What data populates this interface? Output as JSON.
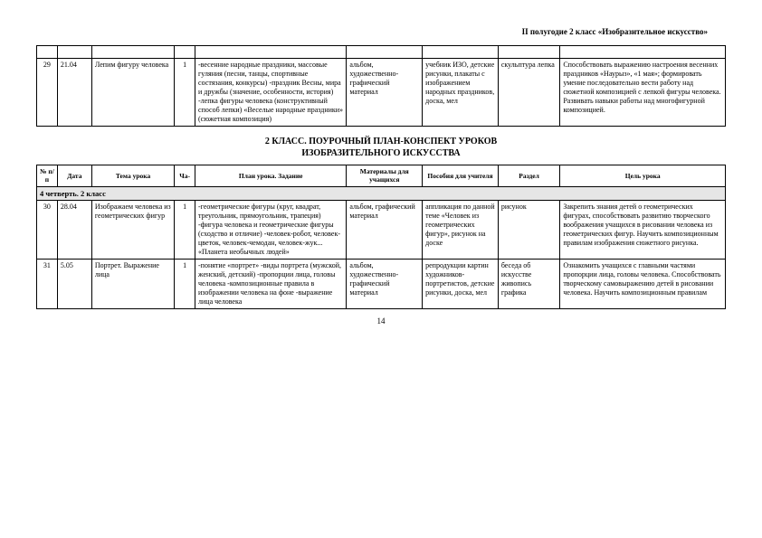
{
  "header": "II полугодие 2 класс «Изобразительное искусство»",
  "page_number": "14",
  "section_title_line1": "2 КЛАСС. ПОУРОЧНЫЙ ПЛАН-КОНСПЕКТ УРОКОВ",
  "section_title_line2": "ИЗОБРАЗИТЕЛЬНОГО ИСКУССТВА",
  "columns": {
    "num": "№ п/п",
    "date": "Дата",
    "topic": "Тема урока",
    "hours": "Ча-",
    "plan": "План урока. Задание",
    "materials": "Материалы для учащихся",
    "aids": "Пособия для учителя",
    "section": "Раздел",
    "goal": "Цель урока"
  },
  "quarter_label": "4 четверть. 2 класс",
  "row29": {
    "num": "29",
    "date": "21.04",
    "topic": "Лепим фигуру человека",
    "hours": "1",
    "plan": "-весенние народные праздники, массовые гуляния (песни, танцы, спортивные состязания, конкурсы)\n-праздник Весны, мира и дружбы (значение, особенности, история)\n-лепка фигуры человека (конструктивный способ лепки)\n«Веселые народные праздники» (сюжетная композиция)",
    "materials": "альбом, художественно-графический материал",
    "aids": "учебник ИЗО, детские рисунки, плакаты с изображением народных праздников, доска, мел",
    "section": "скульптура лепка",
    "goal": "Способствовать выражению настроения весенних праздников «Наурыз», «1 мая»; формировать умение последовательно вести работу над сюжетной композицией с лепкой фигуры человека. Развивать навыки работы над многофигурной композицией."
  },
  "row30": {
    "num": "30",
    "date": "28.04",
    "topic": "Изображаем человека из геометрических фигур",
    "hours": "1",
    "plan": "-геометрические фигуры (круг, квадрат, треугольник, прямоугольник, трапеция)\n-фигура человека и геометрические фигуры (сходство и отличие)\n-человек-робот, человек-цветок, человек-чемодан, человек-жук...\n«Планета необычных людей»",
    "materials": "альбом, графический материал",
    "aids": "аппликация по данной теме «Человек из геометрических фигур», рисунок на доске",
    "section": "рисунок",
    "goal": "Закрепить знания детей о геометрических фигурах, способствовать развитию творческого воображения учащихся в рисовании человека из геометрических фигур. Научить композиционным правилам изображения сюжетного рисунка."
  },
  "row31": {
    "num": "31",
    "date": "5.05",
    "topic": "Портрет. Выражение лица",
    "hours": "1",
    "plan": "-понятие «портрет»\n-виды портрета (мужской, женский, детский)\n-пропорции лица, головы человека\n-композиционные правила в изображении человека на фоне\n-выражение лица человека",
    "materials": "альбом, художественно-графический материал",
    "aids": "репродукции картин художников-портретистов, детские рисунки, доска, мел",
    "section": "беседа об искусстве живопись графика",
    "goal": "Ознакомить учащихся с главными частями пропорции лица, головы человека. Способствовать творческому самовыражению детей в рисовании человека. Научить композиционным правилам"
  }
}
